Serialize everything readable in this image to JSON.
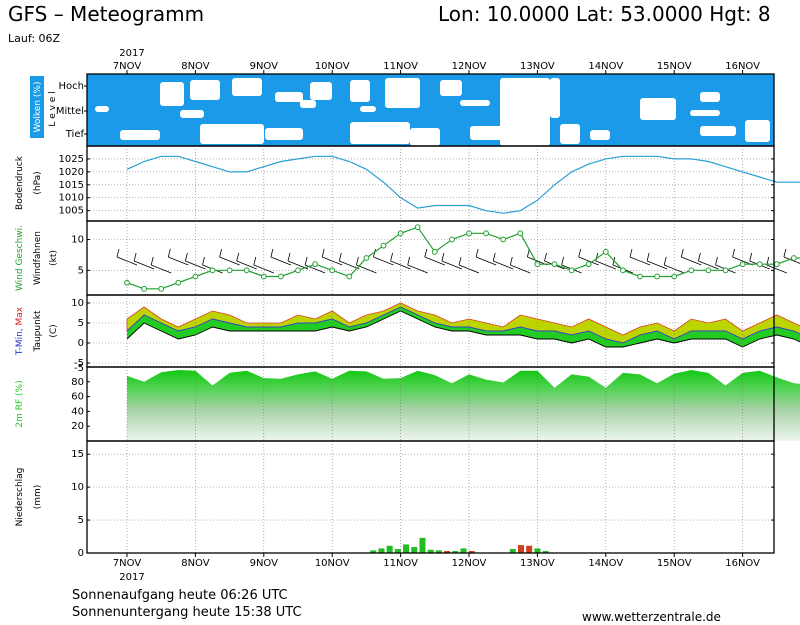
{
  "header": {
    "title_left": "GFS – Meteogramm",
    "title_right": "Lon: 10.0000 Lat: 53.0000 Hgt: 8",
    "run": "Lauf: 06Z",
    "year_top": "2017",
    "year_bottom": "2017"
  },
  "footer": {
    "sunrise": "Sonnenaufgang heute 06:26 UTC",
    "sunset": "Sonnenuntergang heute 15:38 UTC",
    "website": "www.wetterzentrale.de"
  },
  "colors": {
    "cloud_blue": "#1a9ae8",
    "pressure_line": "#2a9fd6",
    "wind_green": "#22a030",
    "temp_green": "#22cc22",
    "temp_yellow": "#bcd400",
    "temp_red": "#e04020",
    "rh_green": "#22c822",
    "precip_green": "#22bb22",
    "precip_red": "#d04020"
  },
  "chart_data": [
    {
      "type": "heatmap",
      "panel": "clouds",
      "title": "",
      "ylabel": "Wolken (%)",
      "level_label": "L e v e l",
      "rows": [
        "Hoch",
        "Mittel",
        "Tief"
      ],
      "x_categories": [
        "7NOV",
        "8NOV",
        "9NOV",
        "10NOV",
        "11NOV",
        "12NOV",
        "13NOV",
        "14NOV",
        "15NOV",
        "16NOV"
      ]
    },
    {
      "type": "line",
      "panel": "pressure",
      "ylabel": "Bodendruck",
      "unit": "(hPa)",
      "yticks": [
        1005,
        1010,
        1015,
        1020,
        1025
      ],
      "ylim": [
        1001,
        1030
      ],
      "x": [
        0,
        0.25,
        0.5,
        0.75,
        1,
        1.25,
        1.5,
        1.75,
        2,
        2.25,
        2.5,
        2.75,
        3,
        3.25,
        3.5,
        3.75,
        4,
        4.25,
        4.5,
        4.75,
        5,
        5.25,
        5.5,
        5.75,
        6,
        6.25,
        6.5,
        6.75,
        7,
        7.25,
        7.5,
        7.75,
        8,
        8.25,
        8.5,
        8.75,
        9,
        9.25,
        9.5,
        9.75,
        10
      ],
      "values": [
        1021,
        1024,
        1026,
        1026,
        1024,
        1022,
        1020,
        1020,
        1022,
        1024,
        1025,
        1026,
        1026,
        1024,
        1021,
        1016,
        1010,
        1006,
        1007,
        1007,
        1007,
        1005,
        1004,
        1005,
        1009,
        1015,
        1020,
        1023,
        1025,
        1026,
        1026,
        1026,
        1025,
        1025,
        1024,
        1022,
        1020,
        1018,
        1016,
        1016,
        1016
      ]
    },
    {
      "type": "line",
      "panel": "wind",
      "ylabel": "Wind Geschwi.",
      "ylabel2": "Windfahnen",
      "unit": "(kt)",
      "yticks": [
        5,
        10
      ],
      "ylim": [
        1,
        13
      ],
      "x": [
        0,
        0.25,
        0.5,
        0.75,
        1,
        1.25,
        1.5,
        1.75,
        2,
        2.25,
        2.5,
        2.75,
        3,
        3.25,
        3.5,
        3.75,
        4,
        4.25,
        4.5,
        4.75,
        5,
        5.25,
        5.5,
        5.75,
        6,
        6.25,
        6.5,
        6.75,
        7,
        7.25,
        7.5,
        7.75,
        8,
        8.25,
        8.5,
        8.75,
        9,
        9.25,
        9.5,
        9.75,
        10
      ],
      "values": [
        3,
        2,
        2,
        3,
        4,
        5,
        5,
        5,
        4,
        4,
        5,
        6,
        5,
        4,
        7,
        9,
        11,
        12,
        8,
        10,
        11,
        11,
        10,
        11,
        6,
        6,
        5,
        6,
        8,
        5,
        4,
        4,
        4,
        5,
        5,
        5,
        6,
        6,
        6,
        7,
        7
      ]
    },
    {
      "type": "area",
      "panel": "temperature",
      "ylabel": "T-Min, Max",
      "ylabel2": "Taupunkt",
      "unit": "(C)",
      "yticks": [
        -5,
        0,
        5,
        10
      ],
      "ylim": [
        -6,
        12
      ],
      "x": [
        0,
        0.25,
        0.5,
        0.75,
        1,
        1.25,
        1.5,
        1.75,
        2,
        2.25,
        2.5,
        2.75,
        3,
        3.25,
        3.5,
        3.75,
        4,
        4.25,
        4.5,
        4.75,
        5,
        5.25,
        5.5,
        5.75,
        6,
        6.25,
        6.5,
        6.75,
        7,
        7.25,
        7.5,
        7.75,
        8,
        8.25,
        8.5,
        8.75,
        9,
        9.25,
        9.5,
        9.75,
        10
      ],
      "series": [
        {
          "name": "T-Max",
          "values": [
            6,
            9,
            6,
            4,
            6,
            8,
            7,
            5,
            5,
            5,
            7,
            6,
            8,
            5,
            7,
            8,
            10,
            8,
            7,
            5,
            6,
            5,
            4,
            7,
            6,
            5,
            4,
            6,
            4,
            2,
            4,
            5,
            3,
            6,
            5,
            6,
            3,
            5,
            7,
            5,
            3
          ]
        },
        {
          "name": "T-Min",
          "values": [
            3,
            7,
            5,
            3,
            4,
            6,
            5,
            4,
            4,
            4,
            5,
            5,
            6,
            4,
            5,
            7,
            9,
            7,
            5,
            4,
            4,
            3,
            3,
            4,
            3,
            3,
            2,
            3,
            1,
            0,
            2,
            3,
            1,
            3,
            3,
            3,
            1,
            3,
            4,
            3,
            1
          ]
        },
        {
          "name": "Taupunkt",
          "values": [
            1,
            5,
            3,
            1,
            2,
            4,
            3,
            3,
            3,
            3,
            3,
            3,
            4,
            3,
            4,
            6,
            8,
            6,
            4,
            3,
            3,
            2,
            2,
            2,
            1,
            1,
            0,
            1,
            -1,
            -1,
            0,
            1,
            0,
            1,
            1,
            1,
            -1,
            1,
            2,
            1,
            -1
          ]
        }
      ]
    },
    {
      "type": "area",
      "panel": "humidity",
      "ylabel": "2m RF (%)",
      "yticks": [
        20,
        40,
        60,
        80
      ],
      "yticks_extra": [
        -5
      ],
      "ylim": [
        0,
        100
      ],
      "x": [
        0,
        0.25,
        0.5,
        0.75,
        1,
        1.25,
        1.5,
        1.75,
        2,
        2.25,
        2.5,
        2.75,
        3,
        3.25,
        3.5,
        3.75,
        4,
        4.25,
        4.5,
        4.75,
        5,
        5.25,
        5.5,
        5.75,
        6,
        6.25,
        6.5,
        6.75,
        7,
        7.25,
        7.5,
        7.75,
        8,
        8.25,
        8.5,
        8.75,
        9,
        9.25,
        9.5,
        9.75,
        10
      ],
      "values": [
        88,
        80,
        93,
        96,
        95,
        75,
        92,
        95,
        85,
        84,
        90,
        94,
        84,
        95,
        94,
        84,
        85,
        95,
        89,
        78,
        90,
        83,
        79,
        95,
        95,
        72,
        90,
        87,
        72,
        92,
        90,
        78,
        91,
        96,
        92,
        75,
        92,
        95,
        86,
        78,
        76
      ]
    },
    {
      "type": "bar",
      "panel": "precipitation",
      "ylabel": "Niederschlag",
      "unit": "(mm)",
      "yticks": [
        0,
        5,
        10,
        15
      ],
      "ylim": [
        0,
        17
      ],
      "bars": [
        {
          "x": 3.6,
          "value": 0.4,
          "kind": "rain"
        },
        {
          "x": 3.72,
          "value": 0.7,
          "kind": "rain"
        },
        {
          "x": 3.84,
          "value": 1.1,
          "kind": "rain"
        },
        {
          "x": 3.96,
          "value": 0.6,
          "kind": "rain"
        },
        {
          "x": 4.08,
          "value": 1.3,
          "kind": "rain"
        },
        {
          "x": 4.2,
          "value": 0.9,
          "kind": "rain"
        },
        {
          "x": 4.32,
          "value": 2.3,
          "kind": "rain"
        },
        {
          "x": 4.44,
          "value": 0.5,
          "kind": "rain"
        },
        {
          "x": 4.56,
          "value": 0.4,
          "kind": "rain"
        },
        {
          "x": 4.68,
          "value": 0.3,
          "kind": "conv"
        },
        {
          "x": 4.8,
          "value": 0.3,
          "kind": "rain"
        },
        {
          "x": 4.92,
          "value": 0.7,
          "kind": "rain"
        },
        {
          "x": 5.04,
          "value": 0.3,
          "kind": "conv"
        },
        {
          "x": 5.64,
          "value": 0.6,
          "kind": "rain"
        },
        {
          "x": 5.76,
          "value": 1.2,
          "kind": "conv"
        },
        {
          "x": 5.88,
          "value": 1.1,
          "kind": "conv"
        },
        {
          "x": 6.0,
          "value": 0.7,
          "kind": "rain"
        },
        {
          "x": 6.12,
          "value": 0.3,
          "kind": "rain"
        }
      ]
    }
  ]
}
